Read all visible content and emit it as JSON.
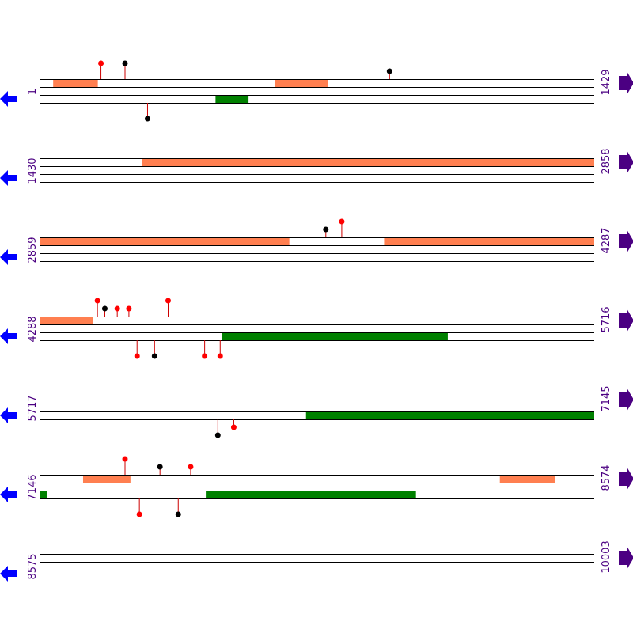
{
  "colors": {
    "forward_feature": "#ff7f50",
    "reverse_feature": "#008000",
    "line": "#000000",
    "stem": "#cc0000",
    "marker_red": "#ff0000",
    "marker_black": "#000000",
    "label": "#4b0082",
    "arrow_left": "#0000ff",
    "arrow_right": "#4b0082"
  },
  "icons": {
    "left": "blue-left-arrow-icon",
    "right": "purple-right-arrow-icon"
  },
  "rows": [
    {
      "start": 1,
      "end": 1429,
      "start_label": "1",
      "end_label": "1429",
      "forward": [
        [
          36,
          151
        ],
        [
          606,
          743
        ]
      ],
      "reverse": [
        [
          454,
          539
        ]
      ],
      "markers_top": [
        {
          "pos": 159,
          "color": "red",
          "tall": true
        },
        {
          "pos": 221,
          "color": "black",
          "tall": true
        },
        {
          "pos": 902,
          "color": "black",
          "tall": false
        }
      ],
      "markers_bottom": [
        {
          "pos": 279,
          "color": "black",
          "tall": true
        }
      ]
    },
    {
      "start": 1430,
      "end": 2858,
      "start_label": "1430",
      "end_label": "2858",
      "forward": [
        [
          1694,
          2858
        ]
      ],
      "reverse": [],
      "markers_top": [],
      "markers_bottom": []
    },
    {
      "start": 2859,
      "end": 4287,
      "start_label": "2859",
      "end_label": "4287",
      "forward": [
        [
          2859,
          3502
        ],
        [
          3746,
          4287
        ]
      ],
      "reverse": [],
      "markers_top": [
        {
          "pos": 3596,
          "color": "black",
          "tall": false
        },
        {
          "pos": 3637,
          "color": "red",
          "tall": true
        }
      ],
      "markers_bottom": []
    },
    {
      "start": 4288,
      "end": 5716,
      "start_label": "4288",
      "end_label": "5716",
      "forward": [
        [
          4288,
          4425
        ]
      ],
      "reverse": [
        [
          4757,
          5339
        ]
      ],
      "markers_top": [
        {
          "pos": 4437,
          "color": "red",
          "tall": true
        },
        {
          "pos": 4456,
          "color": "black",
          "tall": false
        },
        {
          "pos": 4488,
          "color": "red",
          "tall": false
        },
        {
          "pos": 4518,
          "color": "red",
          "tall": false
        },
        {
          "pos": 4619,
          "color": "red",
          "tall": true
        }
      ],
      "markers_bottom": [
        {
          "pos": 4539,
          "color": "red",
          "tall": true
        },
        {
          "pos": 4584,
          "color": "black",
          "tall": true
        },
        {
          "pos": 4713,
          "color": "red",
          "tall": true
        },
        {
          "pos": 4753,
          "color": "red",
          "tall": true
        }
      ]
    },
    {
      "start": 5717,
      "end": 7145,
      "start_label": "5717",
      "end_label": "7145",
      "forward": [],
      "reverse": [
        [
          6403,
          7145
        ]
      ],
      "markers_bottom": [
        {
          "pos": 6176,
          "color": "black",
          "tall": true
        },
        {
          "pos": 6217,
          "color": "red",
          "tall": false
        }
      ],
      "markers_top": []
    },
    {
      "start": 7146,
      "end": 8574,
      "start_label": "7146",
      "end_label": "8574",
      "forward": [
        [
          7258,
          7380
        ],
        [
          8331,
          8474
        ]
      ],
      "reverse": [
        [
          7146,
          7166
        ],
        [
          7574,
          8115
        ]
      ],
      "markers_top": [
        {
          "pos": 7366,
          "color": "red",
          "tall": true
        },
        {
          "pos": 7456,
          "color": "black",
          "tall": false
        },
        {
          "pos": 7535,
          "color": "red",
          "tall": false
        }
      ],
      "markers_bottom": [
        {
          "pos": 7403,
          "color": "red",
          "tall": true
        },
        {
          "pos": 7503,
          "color": "black",
          "tall": true
        }
      ]
    },
    {
      "start": 8575,
      "end": 10003,
      "start_label": "8575",
      "end_label": "10003",
      "forward": [],
      "reverse": [],
      "markers_top": [],
      "markers_bottom": []
    }
  ]
}
